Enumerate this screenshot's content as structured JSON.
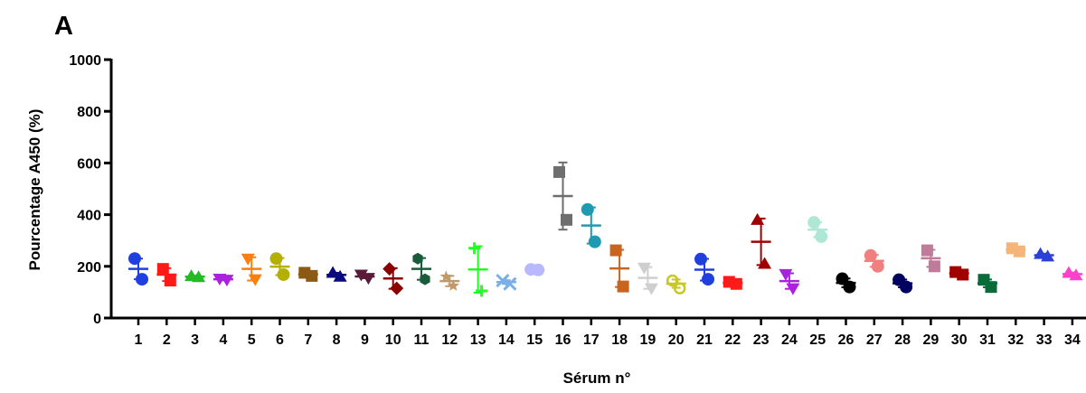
{
  "panel_label": "A",
  "chart_data": {
    "type": "scatter",
    "xlabel": "Sérum n°",
    "ylabel": "Pourcentage A450 (%)",
    "ylim": [
      0,
      1000
    ],
    "yticks": [
      0,
      200,
      400,
      600,
      800,
      1000
    ],
    "grid": false,
    "legend": "none",
    "series": [
      {
        "x": "1",
        "values": [
          230,
          150
        ],
        "mean": 190,
        "sd": 40,
        "color": "#1f3fe0",
        "marker": "circle"
      },
      {
        "x": "2",
        "values": [
          190,
          145
        ],
        "mean": 168,
        "sd": 25,
        "color": "#ff1a1a",
        "marker": "square"
      },
      {
        "x": "3",
        "values": [
          162,
          158
        ],
        "mean": 160,
        "sd": 4,
        "color": "#22bb22",
        "marker": "triangle"
      },
      {
        "x": "4",
        "values": [
          152,
          148
        ],
        "mean": 150,
        "sd": 4,
        "color": "#aa22dd",
        "marker": "triangle-down"
      },
      {
        "x": "5",
        "values": [
          230,
          150
        ],
        "mean": 190,
        "sd": 45,
        "color": "#ff7f0e",
        "marker": "triangle-down"
      },
      {
        "x": "6",
        "values": [
          230,
          168
        ],
        "mean": 199,
        "sd": 33,
        "color": "#b5b000",
        "marker": "circle"
      },
      {
        "x": "7",
        "values": [
          175,
          163
        ],
        "mean": 169,
        "sd": 6,
        "color": "#8b5a14",
        "marker": "square"
      },
      {
        "x": "8",
        "values": [
          175,
          160
        ],
        "mean": 167,
        "sd": 8,
        "color": "#0a0a80",
        "marker": "triangle"
      },
      {
        "x": "9",
        "values": [
          168,
          155
        ],
        "mean": 161,
        "sd": 7,
        "color": "#5a1a3a",
        "marker": "triangle-down"
      },
      {
        "x": "10",
        "values": [
          190,
          115
        ],
        "mean": 153,
        "sd": 40,
        "color": "#8b0000",
        "marker": "diamond"
      },
      {
        "x": "11",
        "values": [
          230,
          150
        ],
        "mean": 190,
        "sd": 42,
        "color": "#1a5c3a",
        "marker": "hexagon"
      },
      {
        "x": "12",
        "values": [
          160,
          125
        ],
        "mean": 143,
        "sd": 20,
        "color": "#c19a6b",
        "marker": "star"
      },
      {
        "x": "13",
        "values": [
          270,
          105
        ],
        "mean": 188,
        "sd": 90,
        "color": "#22ff22",
        "marker": "plus"
      },
      {
        "x": "14",
        "values": [
          145,
          132
        ],
        "mean": 139,
        "sd": 7,
        "color": "#7ab0e8",
        "marker": "cross"
      },
      {
        "x": "15",
        "values": [
          188,
          186
        ],
        "mean": 187,
        "sd": 2,
        "color": "#b8b8ff",
        "marker": "circle"
      },
      {
        "x": "16",
        "values": [
          565,
          380
        ],
        "mean": 472,
        "sd": 130,
        "color": "#6e6e6e",
        "marker": "square"
      },
      {
        "x": "17",
        "values": [
          420,
          295
        ],
        "mean": 358,
        "sd": 70,
        "color": "#1e9bb0",
        "marker": "circle"
      },
      {
        "x": "18",
        "values": [
          262,
          122
        ],
        "mean": 192,
        "sd": 72,
        "color": "#c8641e",
        "marker": "square"
      },
      {
        "x": "19",
        "values": [
          195,
          115
        ],
        "mean": 155,
        "sd": 42,
        "color": "#cfcfcf",
        "marker": "triangle-down"
      },
      {
        "x": "20",
        "values": [
          145,
          115
        ],
        "mean": 133,
        "sd": 16,
        "color": "#c8c820",
        "marker": "ring"
      },
      {
        "x": "21",
        "values": [
          228,
          150
        ],
        "mean": 187,
        "sd": 42,
        "color": "#1f3fe0",
        "marker": "circle"
      },
      {
        "x": "22",
        "values": [
          140,
          132
        ],
        "mean": 136,
        "sd": 5,
        "color": "#ff1a1a",
        "marker": "square"
      },
      {
        "x": "23",
        "values": [
          380,
          210
        ],
        "mean": 295,
        "sd": 90,
        "color": "#a00000",
        "marker": "triangle"
      },
      {
        "x": "24",
        "values": [
          170,
          115
        ],
        "mean": 143,
        "sd": 30,
        "color": "#aa22dd",
        "marker": "triangle-down"
      },
      {
        "x": "25",
        "values": [
          370,
          315
        ],
        "mean": 342,
        "sd": 29,
        "color": "#aee8d4",
        "marker": "circle"
      },
      {
        "x": "26",
        "values": [
          152,
          120
        ],
        "mean": 136,
        "sd": 17,
        "color": "#000000",
        "marker": "circle"
      },
      {
        "x": "27",
        "values": [
          242,
          200
        ],
        "mean": 221,
        "sd": 23,
        "color": "#f08080",
        "marker": "circle"
      },
      {
        "x": "28",
        "values": [
          148,
          120
        ],
        "mean": 134,
        "sd": 15,
        "color": "#000060",
        "marker": "circle"
      },
      {
        "x": "29",
        "values": [
          262,
          200
        ],
        "mean": 231,
        "sd": 33,
        "color": "#c07a9a",
        "marker": "square"
      },
      {
        "x": "30",
        "values": [
          178,
          168
        ],
        "mean": 173,
        "sd": 6,
        "color": "#a00000",
        "marker": "square"
      },
      {
        "x": "31",
        "values": [
          148,
          120
        ],
        "mean": 134,
        "sd": 15,
        "color": "#0a6b3a",
        "marker": "square"
      },
      {
        "x": "32",
        "values": [
          270,
          258
        ],
        "mean": 264,
        "sd": 7,
        "color": "#f5b478",
        "marker": "square"
      },
      {
        "x": "33",
        "values": [
          248,
          238
        ],
        "mean": 243,
        "sd": 6,
        "color": "#2a40d8",
        "marker": "triangle"
      },
      {
        "x": "34",
        "values": [
          175,
          165
        ],
        "mean": 170,
        "sd": 6,
        "color": "#ff40c8",
        "marker": "triangle"
      }
    ]
  }
}
